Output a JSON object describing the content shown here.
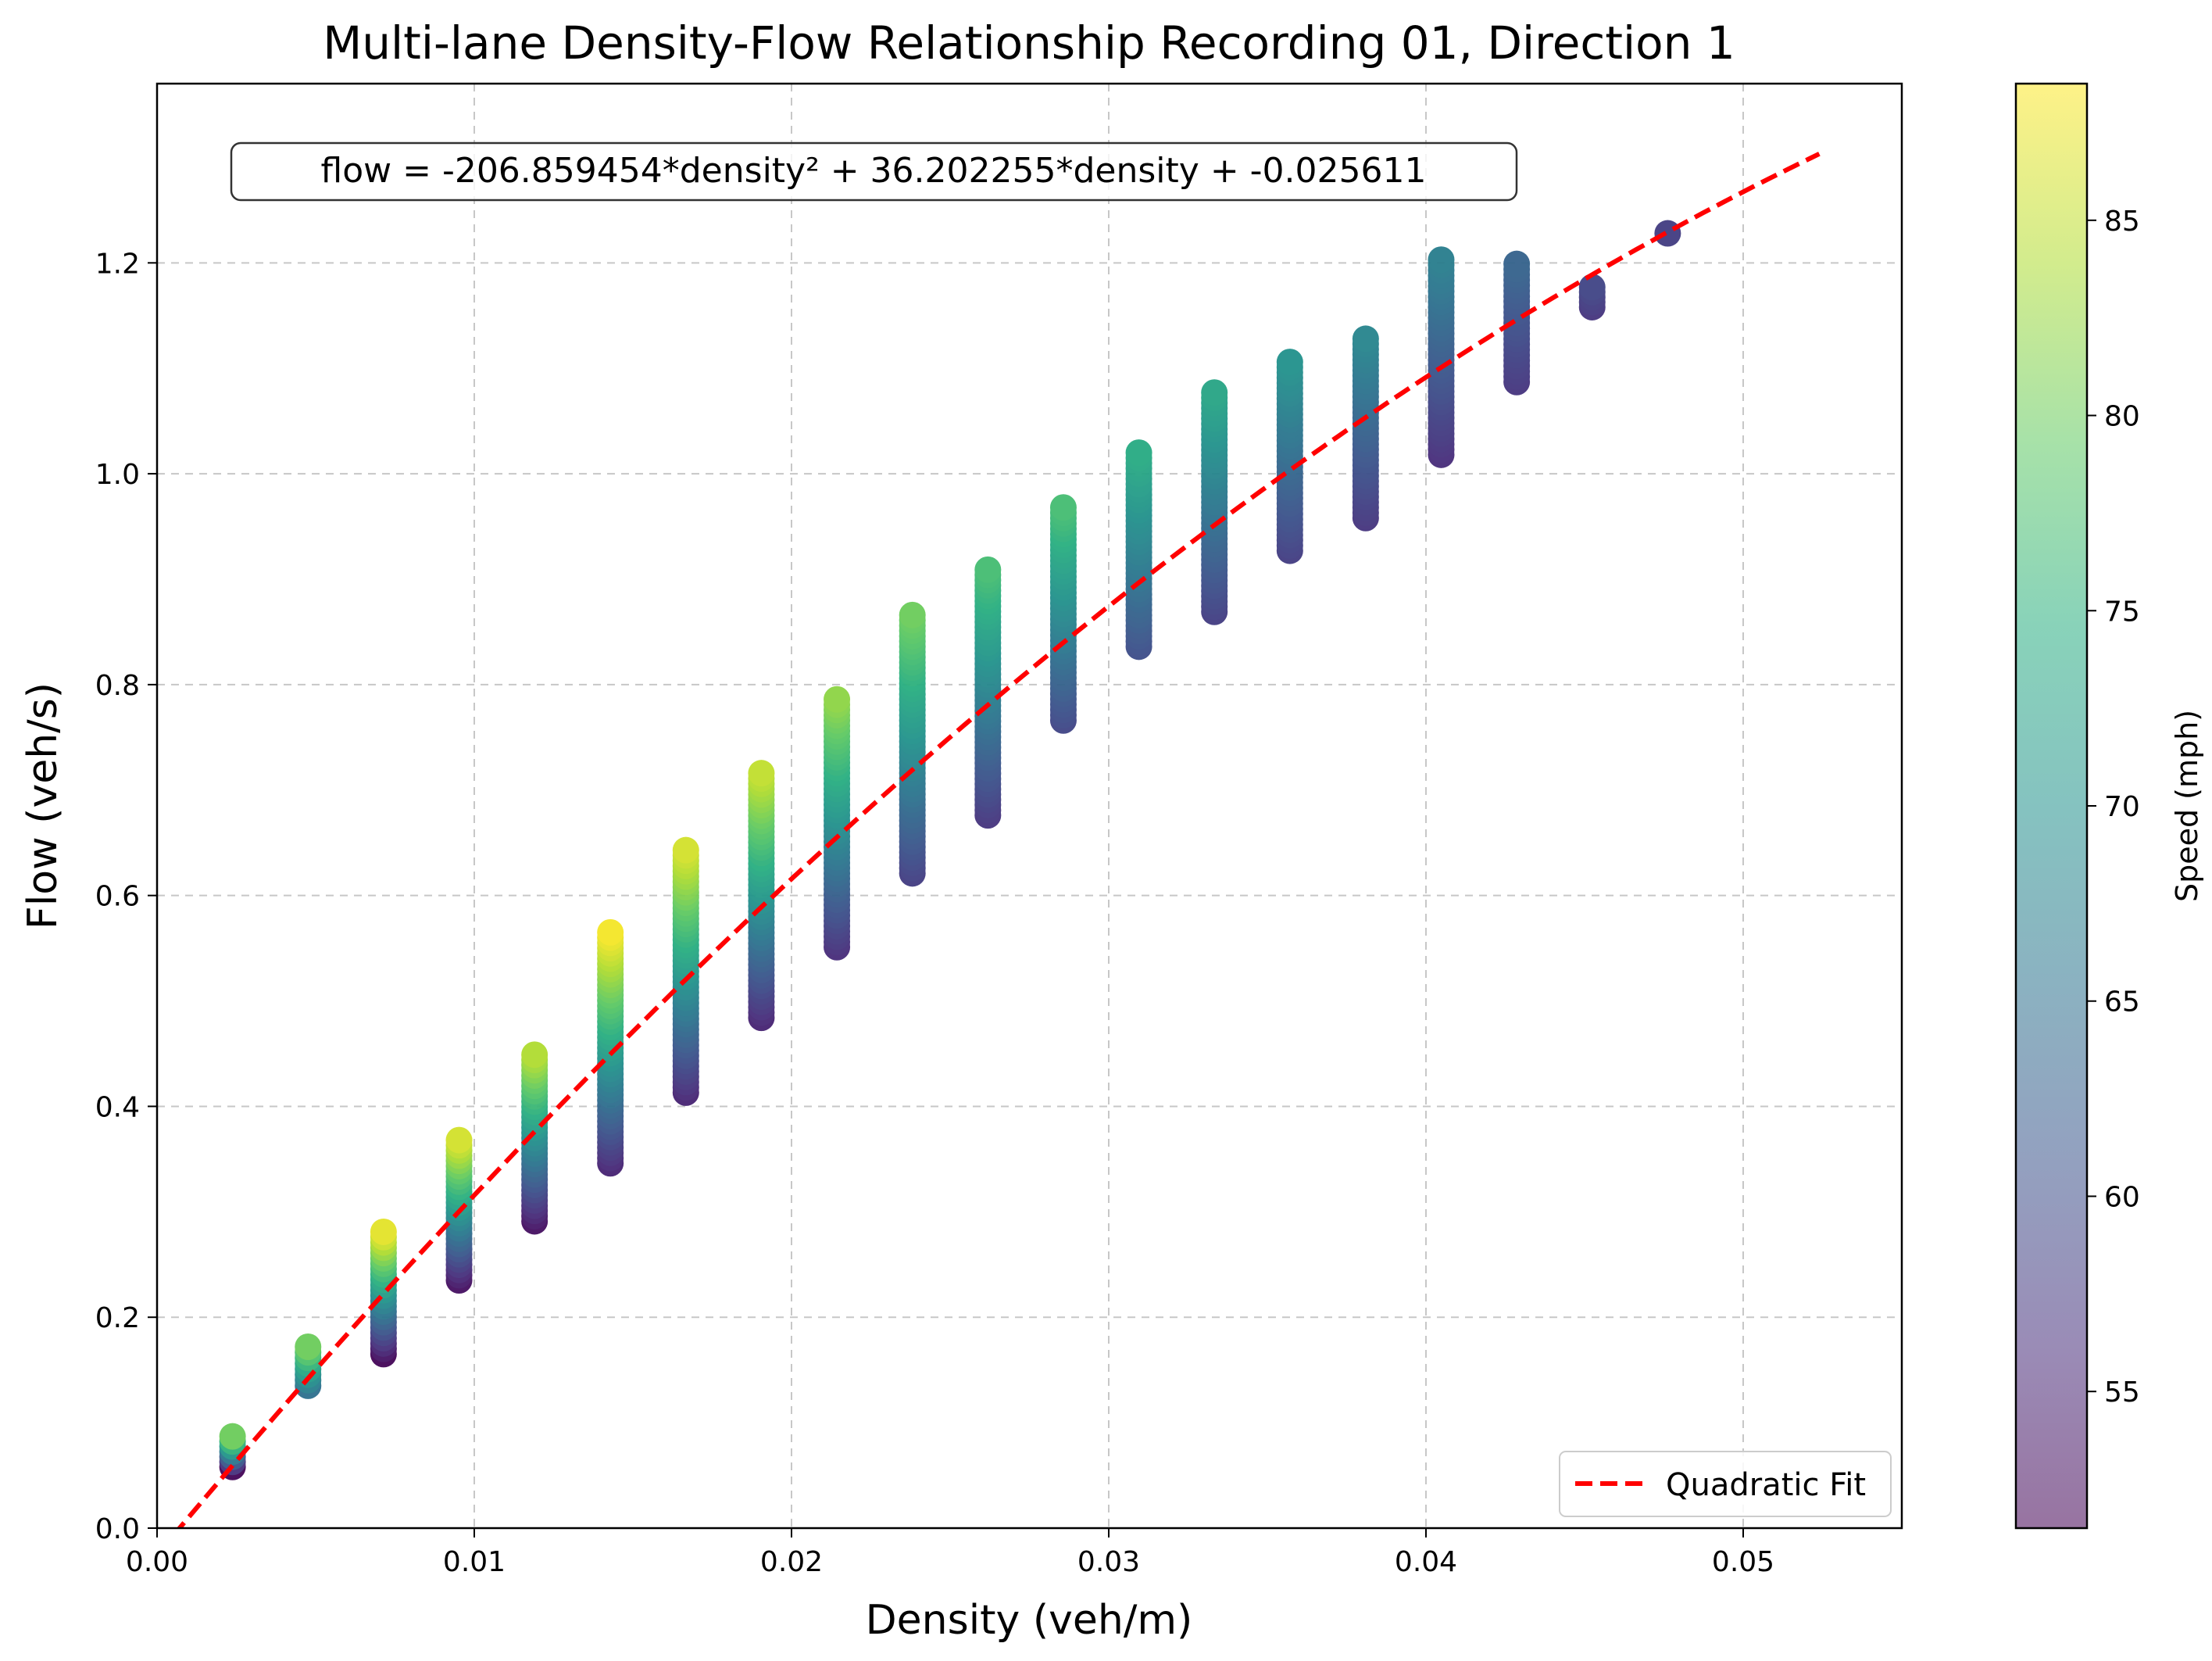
{
  "chart_data": {
    "type": "scatter",
    "title": "Multi-lane Density-Flow Relationship Recording 01, Direction 1",
    "xlabel": "Density (veh/m)",
    "ylabel": "Flow (veh/s)",
    "xlim": [
      0.0,
      0.055
    ],
    "ylim": [
      0.0,
      1.37
    ],
    "xticks": [
      "0.00",
      "0.01",
      "0.02",
      "0.03",
      "0.04",
      "0.05"
    ],
    "yticks": [
      "0.0",
      "0.2",
      "0.4",
      "0.6",
      "0.8",
      "1.0",
      "1.2"
    ],
    "grid": true,
    "legend_position": "lower-right",
    "annotation": "flow = -206.859454*density² + 36.202255*density + -0.025611",
    "colorbar": {
      "label": "Speed (mph)",
      "range": [
        51.5,
        88.5
      ],
      "ticks": [
        "55",
        "60",
        "65",
        "70",
        "75",
        "80",
        "85"
      ],
      "colormap": "viridis"
    },
    "fit": {
      "name": "Quadratic Fit",
      "color": "#ff0000",
      "a": -206.859454,
      "b": 36.202255,
      "c": -0.025611,
      "x_range": [
        0.0,
        0.0524
      ]
    },
    "point_groups": [
      {
        "density": 0.00238,
        "flow_min": 0.058,
        "flow_max": 0.087,
        "speed_min": 52,
        "speed_max": 80
      },
      {
        "density": 0.00476,
        "flow_min": 0.135,
        "flow_max": 0.172,
        "speed_min": 65,
        "speed_max": 80
      },
      {
        "density": 0.00714,
        "flow_min": 0.165,
        "flow_max": 0.281,
        "speed_min": 52,
        "speed_max": 87
      },
      {
        "density": 0.00952,
        "flow_min": 0.235,
        "flow_max": 0.368,
        "speed_min": 53,
        "speed_max": 86
      },
      {
        "density": 0.0119,
        "flow_min": 0.291,
        "flow_max": 0.449,
        "speed_min": 53,
        "speed_max": 84
      },
      {
        "density": 0.01429,
        "flow_min": 0.346,
        "flow_max": 0.565,
        "speed_min": 55,
        "speed_max": 88
      },
      {
        "density": 0.01667,
        "flow_min": 0.413,
        "flow_max": 0.643,
        "speed_min": 55,
        "speed_max": 86
      },
      {
        "density": 0.01905,
        "flow_min": 0.484,
        "flow_max": 0.716,
        "speed_min": 55,
        "speed_max": 85
      },
      {
        "density": 0.02143,
        "flow_min": 0.551,
        "flow_max": 0.786,
        "speed_min": 56,
        "speed_max": 82
      },
      {
        "density": 0.02381,
        "flow_min": 0.621,
        "flow_max": 0.866,
        "speed_min": 58,
        "speed_max": 80
      },
      {
        "density": 0.02619,
        "flow_min": 0.676,
        "flow_max": 0.909,
        "speed_min": 57,
        "speed_max": 77
      },
      {
        "density": 0.02857,
        "flow_min": 0.766,
        "flow_max": 0.968,
        "speed_min": 59,
        "speed_max": 77
      },
      {
        "density": 0.03095,
        "flow_min": 0.836,
        "flow_max": 1.02,
        "speed_min": 60,
        "speed_max": 74
      },
      {
        "density": 0.03333,
        "flow_min": 0.869,
        "flow_max": 1.077,
        "speed_min": 58,
        "speed_max": 73
      },
      {
        "density": 0.03571,
        "flow_min": 0.927,
        "flow_max": 1.106,
        "speed_min": 58,
        "speed_max": 70
      },
      {
        "density": 0.0381,
        "flow_min": 0.958,
        "flow_max": 1.128,
        "speed_min": 57,
        "speed_max": 68
      },
      {
        "density": 0.04048,
        "flow_min": 1.018,
        "flow_max": 1.203,
        "speed_min": 56,
        "speed_max": 67
      },
      {
        "density": 0.04286,
        "flow_min": 1.087,
        "flow_max": 1.199,
        "speed_min": 57,
        "speed_max": 63
      },
      {
        "density": 0.04524,
        "flow_min": 1.158,
        "flow_max": 1.177,
        "speed_min": 57,
        "speed_max": 59
      },
      {
        "density": 0.04762,
        "flow_min": 1.228,
        "flow_max": 1.228,
        "speed_min": 58,
        "speed_max": 58
      }
    ]
  }
}
